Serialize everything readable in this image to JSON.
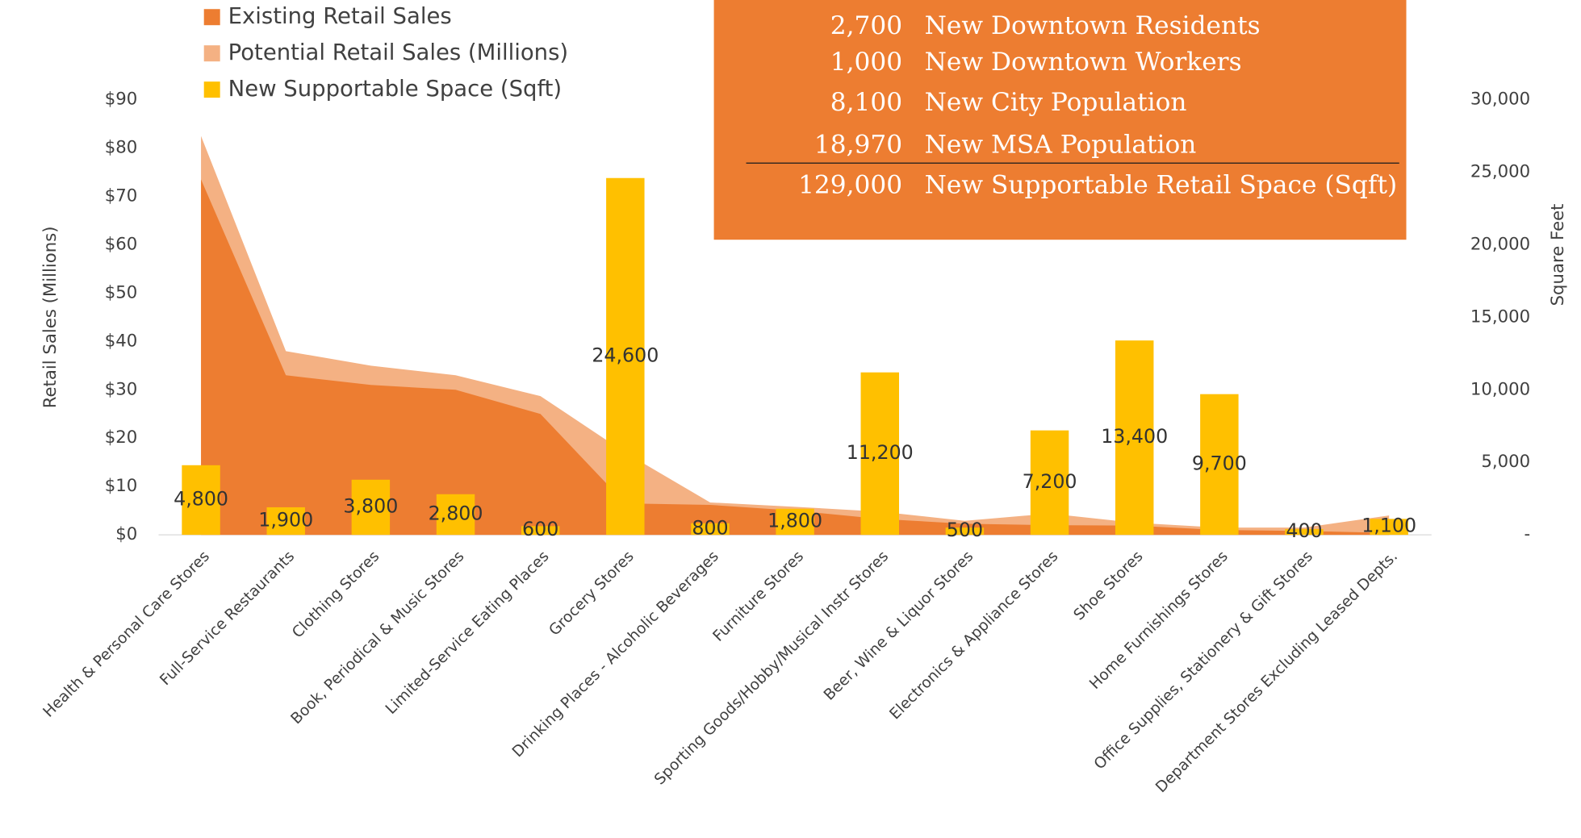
{
  "chart_data": {
    "type": "area",
    "categories": [
      "Health & Personal Care Stores",
      "Full-Service Restaurants",
      "Clothing Stores",
      "Book, Periodical & Music Stores",
      "Limited-Service Eating Places",
      "Grocery Stores",
      "Drinking Places - Alcoholic Beverages",
      "Furniture Stores",
      "Sporting Goods/Hobby/Musical Instr Stores",
      "Beer, Wine & Liquor Stores",
      "Electronics & Appliance Stores",
      "Shoe Stores",
      "Home Furnishings Stores",
      "Office Supplies, Stationery & Gift Stores",
      "Department Stores Excluding Leased Depts."
    ],
    "series": [
      {
        "name": "Existing Retail Sales",
        "type": "area",
        "color": "#ed7d31",
        "values": [
          73.5,
          33,
          31,
          30,
          25,
          6.5,
          6.2,
          5,
          3.3,
          2.3,
          2,
          1.9,
          1,
          0.8,
          0.4
        ]
      },
      {
        "name": "Potential Retail Sales (Millions)",
        "type": "area",
        "color": "#f4b183",
        "values": [
          82.5,
          38,
          35,
          33,
          28.7,
          17,
          6.7,
          5.8,
          4.8,
          2.9,
          4.4,
          2.5,
          1.5,
          1.5,
          4
        ]
      },
      {
        "name": "New Supportable Space (Sqft)",
        "type": "bar",
        "axis": "y2",
        "color": "#ffc000",
        "values": [
          4800,
          1900,
          3800,
          2800,
          600,
          24600,
          800,
          1800,
          11200,
          500,
          7200,
          13400,
          9700,
          400,
          1100
        ],
        "value_labels": [
          "4,800",
          "1,900",
          "3,800",
          "2,800",
          "600",
          "24,600",
          "800",
          "1,800",
          "11,200",
          "500",
          "7,200",
          "13,400",
          "9,700",
          "400",
          "1,100"
        ]
      }
    ],
    "ylabel": "Retail Sales (Millions)",
    "y2label": "Square Feet",
    "ylim": [
      0,
      90
    ],
    "yticks": [
      {
        "value": 0,
        "label": "$0"
      },
      {
        "value": 10,
        "label": "$10"
      },
      {
        "value": 20,
        "label": "$20"
      },
      {
        "value": 30,
        "label": "$30"
      },
      {
        "value": 40,
        "label": "$40"
      },
      {
        "value": 50,
        "label": "$50"
      },
      {
        "value": 60,
        "label": "$60"
      },
      {
        "value": 70,
        "label": "$70"
      },
      {
        "value": 80,
        "label": "$80"
      },
      {
        "value": 90,
        "label": "$90"
      }
    ],
    "y2lim": [
      0,
      30000
    ],
    "y2ticks": [
      {
        "value": 0,
        "label": "-"
      },
      {
        "value": 5000,
        "label": "5,000"
      },
      {
        "value": 10000,
        "label": "10,000"
      },
      {
        "value": 15000,
        "label": "15,000"
      },
      {
        "value": 20000,
        "label": "20,000"
      },
      {
        "value": 25000,
        "label": "25,000"
      },
      {
        "value": 30000,
        "label": "30,000"
      }
    ],
    "legend": "top-left",
    "info_box": {
      "rows": [
        {
          "number": "2,700",
          "label": "New Downtown Residents"
        },
        {
          "number": "1,000",
          "label": "New Downtown Workers"
        },
        {
          "number": "8,100",
          "label": "New City Population"
        },
        {
          "number": "18,970",
          "label": "New MSA Population"
        },
        {
          "number": "129,000",
          "label": "New Supportable Retail Space (Sqft)"
        }
      ]
    }
  }
}
